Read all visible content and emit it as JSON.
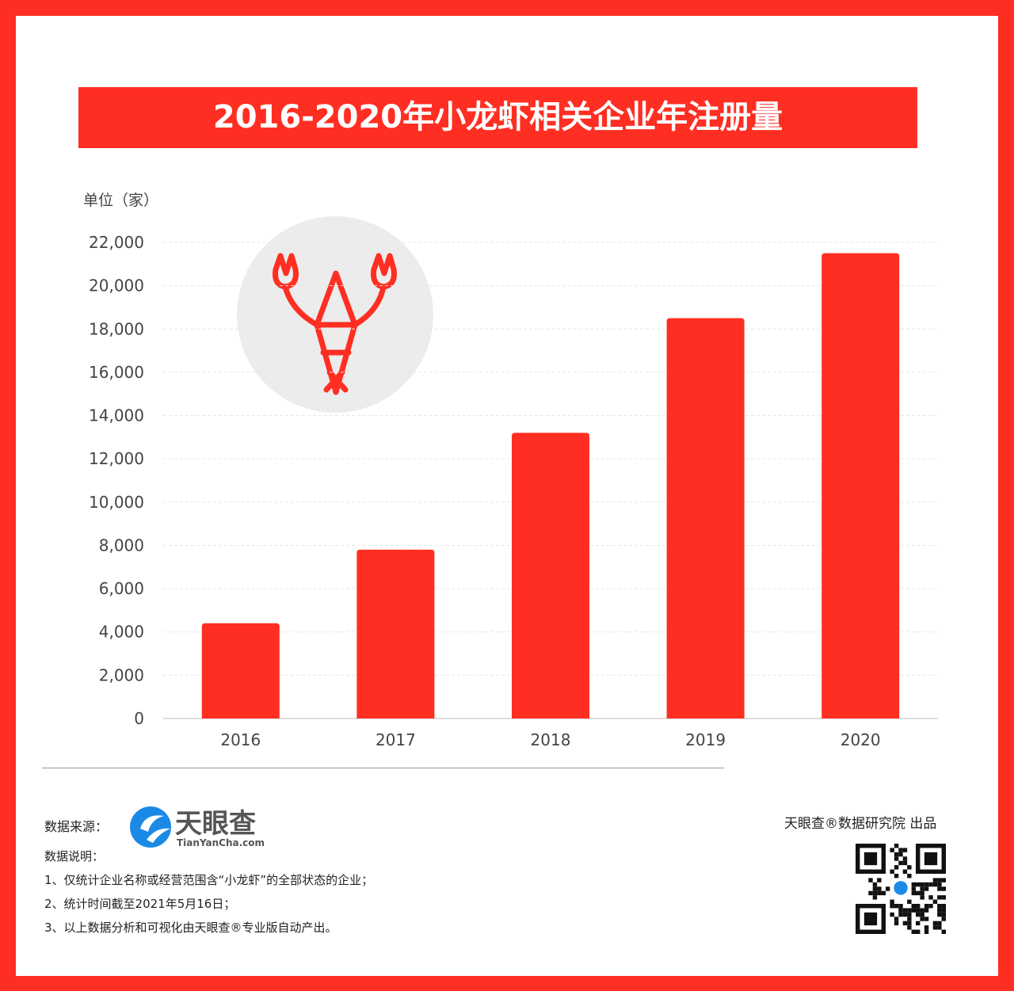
{
  "chart_data": {
    "type": "bar",
    "title": "2016-2020年小龙虾相关企业年注册量",
    "ylabel": "单位（家）",
    "xlabel": "",
    "categories": [
      "2016",
      "2017",
      "2018",
      "2019",
      "2020"
    ],
    "values": [
      4400,
      7800,
      13200,
      18500,
      21500
    ],
    "ylim": [
      0,
      22000
    ],
    "yticks": [
      "0",
      "2,000",
      "4,000",
      "6,000",
      "8,000",
      "10,000",
      "12,000",
      "14,000",
      "16,000",
      "18,000",
      "20,000",
      "22,000"
    ],
    "grid": true,
    "bar_color": "#ff2e22"
  },
  "footer": {
    "source_label": "数据来源：",
    "logo_text": "天眼查",
    "logo_sub": "TianYanCha.com",
    "notes_title": "数据说明：",
    "notes": [
      "1、仅统计企业名称或经营范围含“小龙虾”的全部状态的企业；",
      "2、统计时间截至2021年5月16日；",
      "3、以上数据分析和可视化由天眼查®专业版自动产出。"
    ],
    "brand": "天眼查®数据研究院 出品"
  },
  "watermark": "天眼查 TianYanCha.com",
  "icons": [
    "lobster-icon",
    "qr-code-icon",
    "tianyancha-logo-icon"
  ]
}
